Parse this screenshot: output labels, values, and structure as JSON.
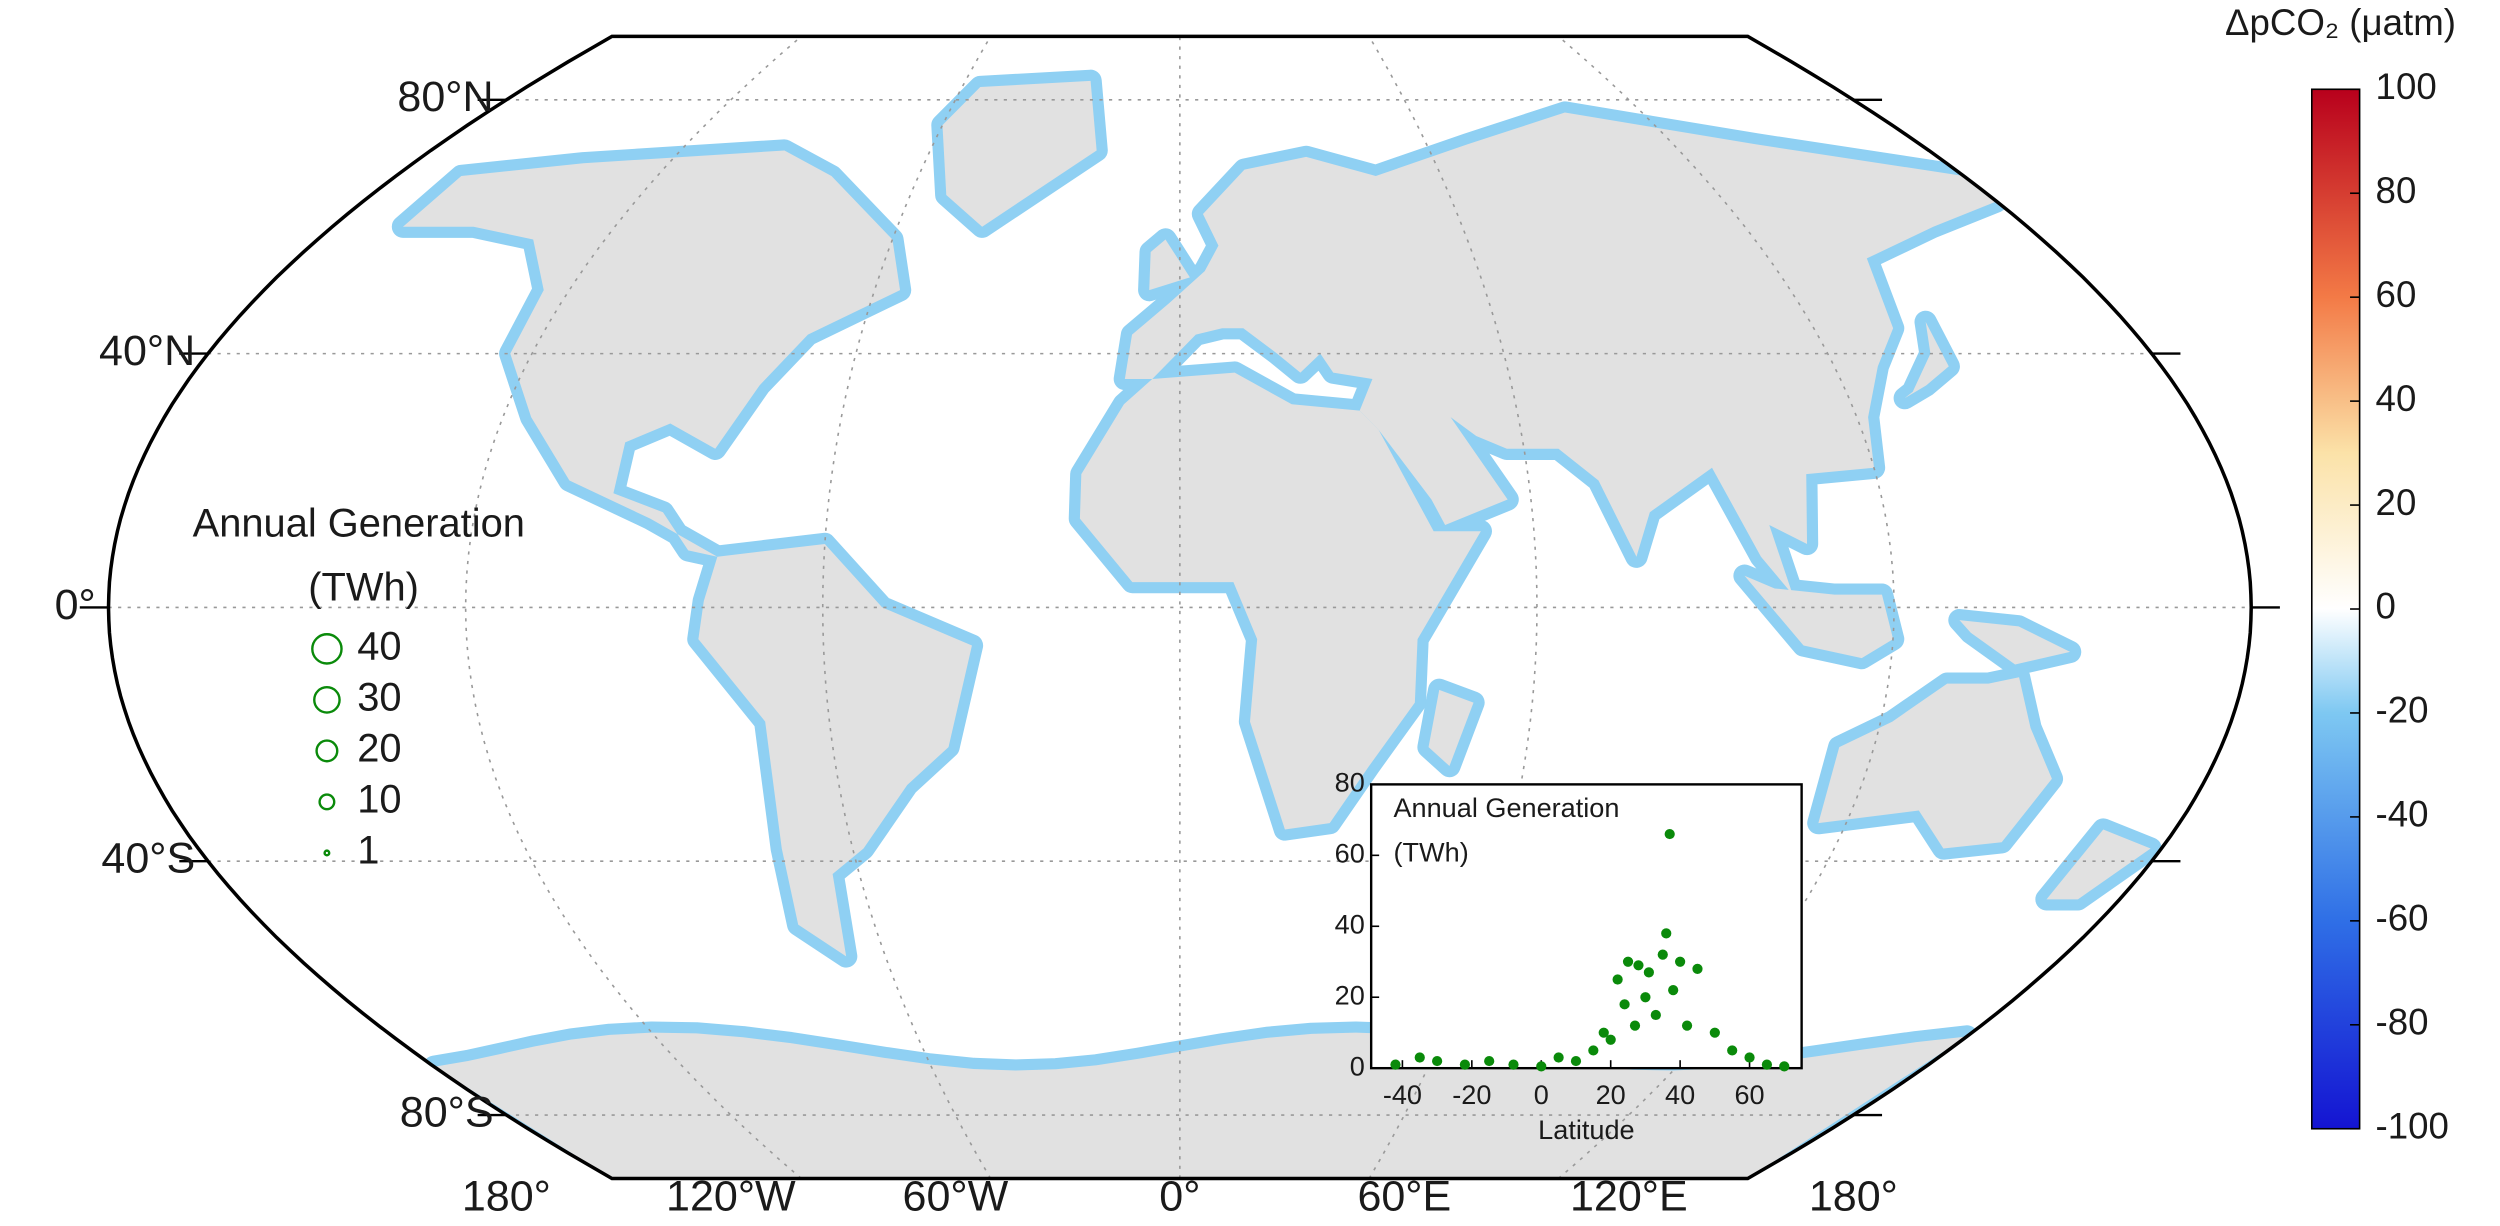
{
  "map": {
    "lat_labels": [
      "80°N",
      "40°N",
      "0°",
      "40°S",
      "80°S"
    ],
    "lon_labels": [
      "180°",
      "120°W",
      "60°W",
      "0°",
      "60°E",
      "120°E",
      "180°"
    ]
  },
  "colorbar": {
    "title": "ΔpCO₂ (μatm)",
    "lim": [
      -100,
      100
    ],
    "ticks": [
      100,
      80,
      60,
      40,
      20,
      0,
      -20,
      -40,
      -60,
      -80,
      -100
    ]
  },
  "legend": {
    "title_lines": [
      "Annual Generation",
      "(TWh)"
    ],
    "sizes": [
      40,
      30,
      20,
      10,
      1
    ]
  },
  "chart_data": {
    "type": "scatter",
    "title_lines": [
      "Annual Generation",
      "(TWh)"
    ],
    "x_label": "Latitude",
    "xlim": [
      -49,
      75
    ],
    "xticks": [
      -40,
      -20,
      0,
      20,
      40,
      60
    ],
    "ylim": [
      0,
      80
    ],
    "yticks": [
      0,
      20,
      40,
      60,
      80
    ],
    "series": [
      {
        "color": "#0a8a0a",
        "x": [
          -42,
          -35,
          -30,
          -22,
          -15,
          -8,
          0,
          5,
          10,
          15,
          18,
          20,
          22,
          24,
          25,
          27,
          28,
          30,
          31,
          33,
          35,
          36,
          37,
          38,
          40,
          42,
          45,
          50,
          55,
          60,
          65,
          70
        ],
        "values": [
          1,
          3,
          2,
          1,
          2,
          1,
          0.5,
          3,
          2,
          5,
          10,
          8,
          25,
          18,
          30,
          12,
          29,
          20,
          27,
          15,
          32,
          38,
          66,
          22,
          30,
          12,
          28,
          10,
          5,
          3,
          1,
          0.5
        ]
      }
    ]
  }
}
